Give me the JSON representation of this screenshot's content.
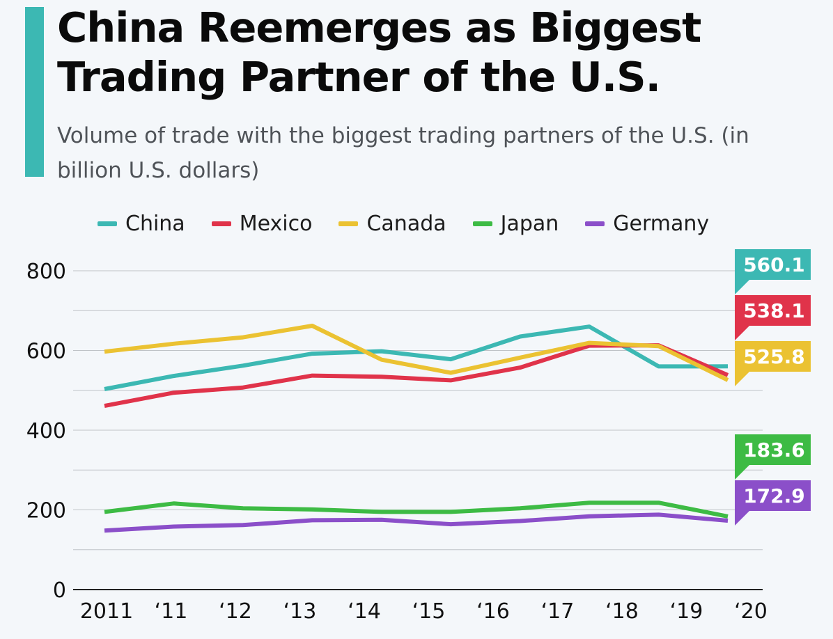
{
  "title": "China Reemerges as Biggest Trading Partner of the U.S.",
  "subtitle": "Volume of trade with the biggest trading partners of the U.S. (in billion U.S. dollars)",
  "colors": {
    "accent": "#3cb8b3",
    "background": "#f4f7fa",
    "grid": "#bfc3c7"
  },
  "chart_data": {
    "type": "line",
    "title": "China Reemerges as Biggest Trading Partner of the U.S.",
    "subtitle": "Volume of trade with the biggest trading partners of the U.S. (in billion U.S. dollars)",
    "xlabel": "",
    "ylabel": "",
    "x_tick_labels": [
      "2011",
      "‘11",
      "‘12",
      "‘13",
      "‘14",
      "‘15",
      "‘16",
      "‘17",
      "‘18",
      "‘19",
      "‘20"
    ],
    "y_tick_labels": [
      "0",
      "200",
      "400",
      "600",
      "800"
    ],
    "y_ticks": [
      0,
      200,
      400,
      600,
      800
    ],
    "ylim": [
      0,
      800
    ],
    "grid": true,
    "legend_position": "top",
    "series": [
      {
        "name": "China",
        "color": "#3cb8b3",
        "end_label": "560.1",
        "points": [
          [
            2011,
            503
          ],
          [
            2012,
            536
          ],
          [
            2013,
            562
          ],
          [
            2014,
            592
          ],
          [
            2015,
            598
          ],
          [
            2016,
            578
          ],
          [
            2017,
            635
          ],
          [
            2018,
            660
          ],
          [
            2019,
            560
          ],
          [
            2020,
            560.1
          ]
        ]
      },
      {
        "name": "Mexico",
        "color": "#e0334a",
        "end_label": "538.1",
        "points": [
          [
            2011,
            461
          ],
          [
            2012,
            494
          ],
          [
            2013,
            507
          ],
          [
            2014,
            537
          ],
          [
            2015,
            534
          ],
          [
            2016,
            525
          ],
          [
            2017,
            557
          ],
          [
            2018,
            612
          ],
          [
            2019,
            613
          ],
          [
            2020,
            538.1
          ]
        ]
      },
      {
        "name": "Canada",
        "color": "#ebc232",
        "end_label": "525.8",
        "points": [
          [
            2011,
            597
          ],
          [
            2012,
            617
          ],
          [
            2013,
            633
          ],
          [
            2014,
            662
          ],
          [
            2015,
            577
          ],
          [
            2016,
            544
          ],
          [
            2017,
            582
          ],
          [
            2018,
            619
          ],
          [
            2019,
            611
          ],
          [
            2020,
            525.8
          ]
        ]
      },
      {
        "name": "Japan",
        "color": "#3dbb44",
        "end_label": "183.6",
        "points": [
          [
            2011,
            195
          ],
          [
            2012,
            216
          ],
          [
            2013,
            204
          ],
          [
            2014,
            201
          ],
          [
            2015,
            195
          ],
          [
            2016,
            195
          ],
          [
            2017,
            204
          ],
          [
            2018,
            218
          ],
          [
            2019,
            218
          ],
          [
            2020,
            183.6
          ]
        ]
      },
      {
        "name": "Germany",
        "color": "#8b4fc9",
        "end_label": "172.9",
        "points": [
          [
            2011,
            148
          ],
          [
            2012,
            158
          ],
          [
            2013,
            162
          ],
          [
            2014,
            174
          ],
          [
            2015,
            175
          ],
          [
            2016,
            164
          ],
          [
            2017,
            172
          ],
          [
            2018,
            184
          ],
          [
            2019,
            188
          ],
          [
            2020,
            172.9
          ]
        ]
      }
    ]
  }
}
